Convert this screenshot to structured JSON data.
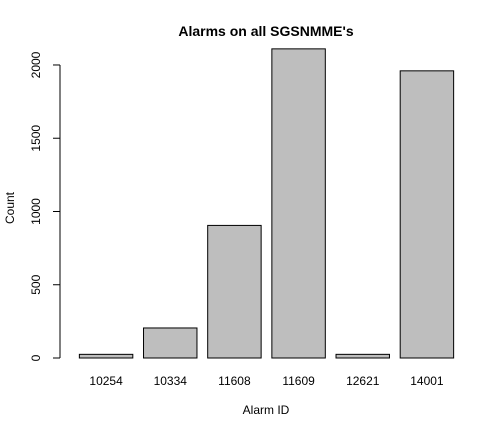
{
  "chart_data": {
    "type": "bar",
    "title": "Alarms on all SGSNMME's",
    "xlabel": "Alarm ID",
    "ylabel": "Count",
    "categories": [
      "10254",
      "10334",
      "11608",
      "11609",
      "12621",
      "14001"
    ],
    "values": [
      25,
      205,
      905,
      2110,
      25,
      1960
    ],
    "ylim": [
      0,
      2150
    ],
    "yticks": [
      0,
      500,
      1000,
      1500,
      2000
    ],
    "grid": false,
    "legend": "none",
    "bar_color": "#bebebe",
    "bar_border_color": "#000000"
  }
}
